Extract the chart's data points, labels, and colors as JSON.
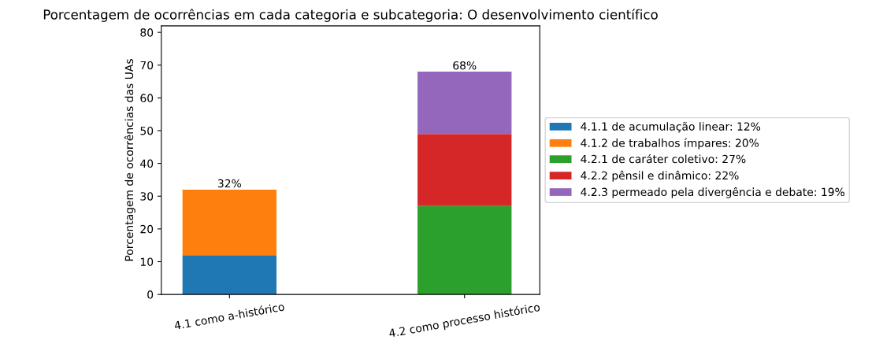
{
  "chart_data": {
    "type": "bar",
    "stacked": true,
    "title": "Porcentagem de ocorrências em cada categoria e subcategoria: O desenvolvimento científico",
    "ylabel": "Porcentagem de ocorrências das UAs",
    "categories": [
      "4.1 como a-histórico",
      "4.2 como processo histórico"
    ],
    "series": [
      {
        "name": "4.1.1 de acumulação linear: 12%",
        "color": "#1f77b4",
        "values": [
          12,
          null
        ]
      },
      {
        "name": "4.1.2 de trabalhos ímpares: 20%",
        "color": "#ff7f0e",
        "values": [
          20,
          null
        ]
      },
      {
        "name": "4.2.1 de caráter coletivo: 27%",
        "color": "#2ca02c",
        "values": [
          null,
          27
        ]
      },
      {
        "name": "4.2.2 pênsil e dinâmico: 22%",
        "color": "#d62728",
        "values": [
          null,
          22
        ]
      },
      {
        "name": "4.2.3 permeado pela divergência e debate: 19%",
        "color": "#9467bd",
        "values": [
          null,
          19
        ]
      }
    ],
    "totals": [
      "32%",
      "68%"
    ],
    "ylim": [
      0,
      82
    ],
    "yticks": [
      0,
      10,
      20,
      30,
      40,
      50,
      60,
      70,
      80
    ],
    "legend": "right",
    "grid": false
  }
}
